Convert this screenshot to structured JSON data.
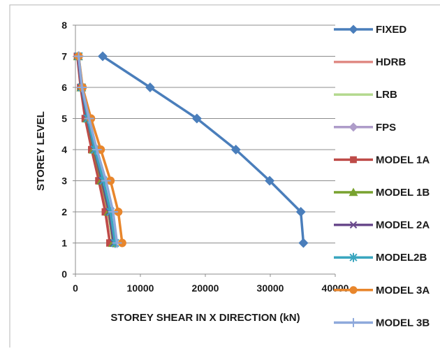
{
  "chart_data": {
    "type": "line",
    "title": "",
    "xlabel": "STOREY SHEAR IN X DIRECTION (kN)",
    "ylabel": "STOREY LEVEL",
    "xlim": [
      0,
      40000
    ],
    "ylim": [
      0,
      8
    ],
    "xticks": [
      "0",
      "10000",
      "20000",
      "30000",
      "40000"
    ],
    "yticks": [
      "0",
      "1",
      "2",
      "3",
      "4",
      "5",
      "6",
      "7",
      "8"
    ],
    "grid": "horizontal",
    "legend_position": "right",
    "y": [
      7,
      6,
      5,
      4,
      3,
      2,
      1
    ],
    "series": [
      {
        "name": "FIXED",
        "color": "#4a7ebb",
        "marker": "diamond",
        "x": [
          4200,
          11500,
          18700,
          24700,
          29900,
          34700,
          35100
        ]
      },
      {
        "name": "HDRB",
        "color": "#e08a84",
        "marker": "none",
        "x": [
          400,
          900,
          1700,
          2700,
          3800,
          4700,
          5300
        ]
      },
      {
        "name": "LRB",
        "color": "#b4d98f",
        "marker": "none",
        "x": [
          500,
          1100,
          2000,
          3100,
          4200,
          5300,
          6000
        ]
      },
      {
        "name": "FPS",
        "color": "#ae9cc9",
        "marker": "diamond",
        "x": [
          500,
          1000,
          1900,
          3000,
          4100,
          5100,
          5800
        ]
      },
      {
        "name": "MODEL 1A",
        "color": "#be4b48",
        "marker": "square",
        "x": [
          300,
          800,
          1500,
          2500,
          3600,
          4600,
          5300
        ]
      },
      {
        "name": "MODEL 1B",
        "color": "#78a22f",
        "marker": "triangle",
        "x": [
          400,
          900,
          1800,
          2800,
          4000,
          5100,
          5800
        ]
      },
      {
        "name": "MODEL 2A",
        "color": "#6a4a8c",
        "marker": "x",
        "x": [
          400,
          900,
          1800,
          2900,
          4100,
          5200,
          5900
        ]
      },
      {
        "name": "MODEL2B",
        "color": "#3aa6bf",
        "marker": "star",
        "x": [
          500,
          1000,
          1900,
          3000,
          4300,
          5400,
          6100
        ]
      },
      {
        "name": "MODEL 3A",
        "color": "#e8862c",
        "marker": "circle",
        "x": [
          500,
          1100,
          2400,
          3900,
          5400,
          6600,
          7200
        ]
      },
      {
        "name": "MODEL 3B",
        "color": "#8ea9db",
        "marker": "plus",
        "x": [
          500,
          1000,
          2100,
          3300,
          4700,
          5800,
          6400
        ]
      }
    ]
  }
}
